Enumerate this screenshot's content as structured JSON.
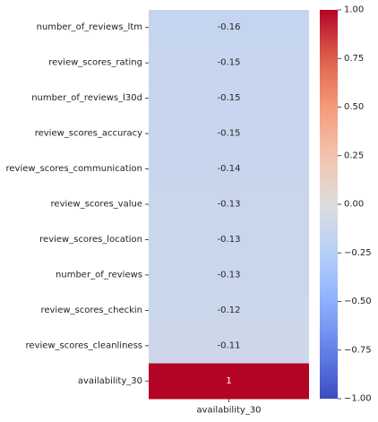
{
  "chart_data": {
    "type": "heatmap",
    "title": "",
    "xlabel": "",
    "ylabel": "",
    "x_categories": [
      "availability_30"
    ],
    "y_categories": [
      "number_of_reviews_ltm",
      "review_scores_rating",
      "number_of_reviews_l30d",
      "review_scores_accuracy",
      "review_scores_communication",
      "review_scores_value",
      "review_scores_location",
      "number_of_reviews",
      "review_scores_checkin",
      "review_scores_cleanliness",
      "availability_30"
    ],
    "values": [
      -0.16,
      -0.15,
      -0.15,
      -0.15,
      -0.14,
      -0.13,
      -0.13,
      -0.13,
      -0.12,
      -0.11,
      1
    ],
    "value_labels": [
      "-0.16",
      "-0.15",
      "-0.15",
      "-0.15",
      "-0.14",
      "-0.13",
      "-0.13",
      "-0.13",
      "-0.12",
      "-0.11",
      "1"
    ],
    "colormap": "coolwarm",
    "vmin": -1,
    "vmax": 1,
    "colorbar": {
      "ticks": [
        1.0,
        0.75,
        0.5,
        0.25,
        0.0,
        -0.25,
        -0.5,
        -0.75,
        -1.0
      ],
      "tick_labels": [
        "1.00",
        "0.75",
        "0.50",
        "0.25",
        "0.00",
        "−0.25",
        "−0.50",
        "−0.75",
        "−1.00"
      ],
      "position": "right"
    }
  }
}
